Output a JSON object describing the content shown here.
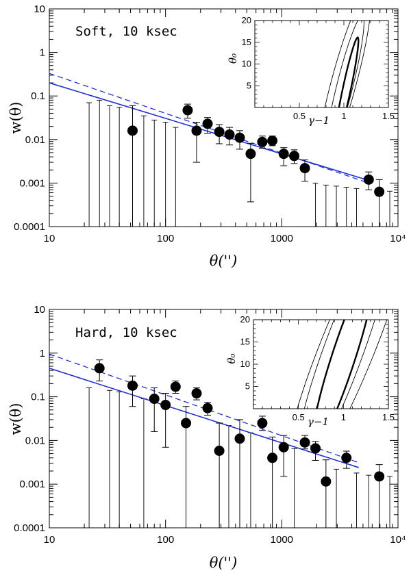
{
  "chart_data": [
    {
      "type": "scatter",
      "title": "Soft, 10 ksec",
      "xlabel": "θ('')",
      "ylabel": "w(θ)",
      "xscale": "log",
      "yscale": "log",
      "xlim": [
        10,
        10000
      ],
      "ylim": [
        0.0001,
        10
      ],
      "x_tick_labels": [
        "10",
        "100",
        "1000",
        "10⁴"
      ],
      "y_tick_labels": [
        "0.0001",
        "0.001",
        "0.01",
        "0.1",
        "1",
        "10"
      ],
      "fit_lines": {
        "solid": [
          [
            10,
            0.2
          ],
          [
            5600,
            0.00115
          ]
        ],
        "dashed": [
          [
            10,
            0.33
          ],
          [
            5600,
            0.001
          ]
        ]
      },
      "points": [
        {
          "x": 52,
          "y": 0.016,
          "lo": 0.0001,
          "hi": 0.06
        },
        {
          "x": 155,
          "y": 0.047,
          "lo": 0.031,
          "hi": 0.065
        },
        {
          "x": 185,
          "y": 0.016,
          "lo": 0.003,
          "hi": 0.025
        },
        {
          "x": 230,
          "y": 0.023,
          "lo": 0.014,
          "hi": 0.032
        },
        {
          "x": 290,
          "y": 0.015,
          "lo": 0.008,
          "hi": 0.022
        },
        {
          "x": 355,
          "y": 0.013,
          "lo": 0.0075,
          "hi": 0.019
        },
        {
          "x": 435,
          "y": 0.011,
          "lo": 0.006,
          "hi": 0.016
        },
        {
          "x": 540,
          "y": 0.0047,
          "lo": 0.00037,
          "hi": 0.0082
        },
        {
          "x": 680,
          "y": 0.0088,
          "lo": 0.0063,
          "hi": 0.012
        },
        {
          "x": 830,
          "y": 0.0094,
          "lo": 0.0072,
          "hi": 0.012
        },
        {
          "x": 1040,
          "y": 0.0047,
          "lo": 0.0025,
          "hi": 0.0065
        },
        {
          "x": 1280,
          "y": 0.0042,
          "lo": 0.0028,
          "hi": 0.0058
        },
        {
          "x": 1580,
          "y": 0.0022,
          "lo": 0.0011,
          "hi": 0.0034
        },
        {
          "x": 5600,
          "y": 0.0012,
          "lo": 0.0007,
          "hi": 0.0018
        },
        {
          "x": 6900,
          "y": 0.00063,
          "lo": 0.0001,
          "hi": 0.0012
        }
      ],
      "upper_limits": [
        {
          "x": 22,
          "hi": 0.07
        },
        {
          "x": 27,
          "hi": 0.08
        },
        {
          "x": 33,
          "hi": 0.06
        },
        {
          "x": 40,
          "hi": 0.055
        },
        {
          "x": 65,
          "hi": 0.035
        },
        {
          "x": 80,
          "hi": 0.028
        },
        {
          "x": 100,
          "hi": 0.025
        },
        {
          "x": 122,
          "hi": 0.019
        },
        {
          "x": 1950,
          "hi": 0.001
        },
        {
          "x": 2400,
          "hi": 0.0009
        },
        {
          "x": 2950,
          "hi": 0.00085
        },
        {
          "x": 3600,
          "hi": 0.0008
        },
        {
          "x": 4400,
          "hi": 0.00075
        },
        {
          "x": 8500,
          "hi": 0.00065
        }
      ],
      "inset": {
        "xlabel": "γ−1",
        "ylabel": "θ₀",
        "xlim": [
          0,
          1.5
        ],
        "ylim": [
          0,
          20
        ],
        "x_tick_labels": [
          "0.5",
          "1",
          "1.5"
        ],
        "y_tick_labels": [
          "5",
          "10",
          "15",
          "20"
        ],
        "contours": [
          {
            "cx": 1.03,
            "cy": 4.0,
            "rx": 0.2,
            "ry": 0.045,
            "angle": -78,
            "weight": "bold"
          },
          {
            "cx": 1.01,
            "cy": 4.9,
            "rx": 0.27,
            "ry": 0.09,
            "angle": -76,
            "weight": "thin"
          },
          {
            "cx": 1.0,
            "cy": 5.8,
            "rx": 0.35,
            "ry": 0.14,
            "angle": -75,
            "weight": "thin"
          }
        ]
      }
    },
    {
      "type": "scatter",
      "title": "Hard, 10 ksec",
      "xlabel": "θ('')",
      "ylabel": "w(θ)",
      "xscale": "log",
      "yscale": "log",
      "xlim": [
        10,
        10000
      ],
      "ylim": [
        0.0001,
        10
      ],
      "x_tick_labels": [
        "10",
        "100",
        "1000",
        "10⁴"
      ],
      "y_tick_labels": [
        "0.0001",
        "0.001",
        "0.01",
        "0.1",
        "1",
        "10"
      ],
      "fit_lines": {
        "solid": [
          [
            10,
            0.45
          ],
          [
            4600,
            0.0024
          ]
        ],
        "dashed": [
          [
            10,
            0.95
          ],
          [
            4600,
            0.0031
          ]
        ]
      },
      "points": [
        {
          "x": 27,
          "y": 0.45,
          "lo": 0.23,
          "hi": 0.7
        },
        {
          "x": 52,
          "y": 0.18,
          "lo": 0.06,
          "hi": 0.3
        },
        {
          "x": 80,
          "y": 0.09,
          "lo": 0.016,
          "hi": 0.16
        },
        {
          "x": 100,
          "y": 0.065,
          "lo": 0.007,
          "hi": 0.12
        },
        {
          "x": 122,
          "y": 0.17,
          "lo": 0.12,
          "hi": 0.23
        },
        {
          "x": 150,
          "y": 0.025,
          "lo": 0.0001,
          "hi": 0.06
        },
        {
          "x": 185,
          "y": 0.12,
          "lo": 0.085,
          "hi": 0.16
        },
        {
          "x": 230,
          "y": 0.055,
          "lo": 0.038,
          "hi": 0.075
        },
        {
          "x": 290,
          "y": 0.0058,
          "lo": 0.0001,
          "hi": 0.025
        },
        {
          "x": 435,
          "y": 0.011,
          "lo": 0.0001,
          "hi": 0.03
        },
        {
          "x": 680,
          "y": 0.025,
          "lo": 0.017,
          "hi": 0.036
        },
        {
          "x": 830,
          "y": 0.004,
          "lo": 0.0001,
          "hi": 0.012
        },
        {
          "x": 1040,
          "y": 0.007,
          "lo": 0.0015,
          "hi": 0.013
        },
        {
          "x": 1580,
          "y": 0.009,
          "lo": 0.0064,
          "hi": 0.013
        },
        {
          "x": 1950,
          "y": 0.0066,
          "lo": 0.0035,
          "hi": 0.0095
        },
        {
          "x": 2400,
          "y": 0.00115,
          "lo": 0.0001,
          "hi": 0.0036
        },
        {
          "x": 3600,
          "y": 0.004,
          "lo": 0.0023,
          "hi": 0.0057
        },
        {
          "x": 6900,
          "y": 0.0015,
          "lo": 0.0001,
          "hi": 0.0028
        }
      ],
      "upper_limits": [
        {
          "x": 22,
          "hi": 0.16
        },
        {
          "x": 33,
          "hi": 0.14
        },
        {
          "x": 40,
          "hi": 0.13
        },
        {
          "x": 65,
          "hi": 0.09
        },
        {
          "x": 350,
          "hi": 0.022
        },
        {
          "x": 540,
          "hi": 0.015
        },
        {
          "x": 1280,
          "hi": 0.0065
        },
        {
          "x": 2950,
          "hi": 0.0022
        },
        {
          "x": 4400,
          "hi": 0.0018
        },
        {
          "x": 5600,
          "hi": 0.0016
        },
        {
          "x": 8500,
          "hi": 0.0015
        }
      ],
      "inset": {
        "xlabel": "γ−1",
        "ylabel": "θ₀",
        "xlim": [
          0,
          1.5
        ],
        "ylim": [
          0,
          20
        ],
        "x_tick_labels": [
          "0.5",
          "1",
          "1.5"
        ],
        "y_tick_labels": [
          "5",
          "10",
          "15",
          "20"
        ],
        "contours": [
          {
            "cx": 1.0,
            "cy": 11.5,
            "rx": 0.34,
            "ry": 0.13,
            "angle": -72,
            "weight": "bold"
          },
          {
            "cx": 1.0,
            "cy": 13.0,
            "rx": 0.47,
            "ry": 0.22,
            "angle": -70,
            "weight": "thin"
          },
          {
            "cx": 1.05,
            "cy": 14.0,
            "rx": 0.58,
            "ry": 0.3,
            "angle": -68,
            "weight": "thin"
          }
        ]
      }
    }
  ]
}
